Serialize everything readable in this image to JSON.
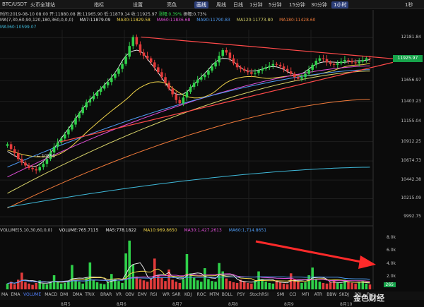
{
  "toolbar": {
    "pair": "BTC/USDT",
    "exchange": "火币全球站",
    "items": [
      "指标",
      "设置",
      "亮色",
      "画线",
      "周线",
      "日线",
      "1分钟",
      "5分钟",
      "15分钟",
      "30分钟",
      "1小时",
      "1秒"
    ],
    "active": "画线",
    "active_period": "1小时"
  },
  "ohlc": {
    "time_label": "时间:2019-08-10 08:00",
    "open_label": "开:11880.08",
    "high_label": "高:11965.90",
    "low_label": "低:11879.14",
    "close_label": "收:11925.97",
    "change_label": "涨幅:0.39%",
    "amplitude_label": "振幅:0.73%"
  },
  "ma_legend": {
    "params": "MA(7,30,60,90,120,180,360,0,0,0)",
    "items": [
      {
        "label": "MA7:11879.09",
        "color": "#e8e8e8"
      },
      {
        "label": "MA30:11829.58",
        "color": "#f0d44a"
      },
      {
        "label": "MA60:11836.68",
        "color": "#e04fd8"
      },
      {
        "label": "MA90:11790.83",
        "color": "#4f9cf5"
      },
      {
        "label": "MA120:11773.80",
        "color": "#d8d36a"
      },
      {
        "label": "MA180:11428.60",
        "color": "#f07a3a"
      }
    ],
    "ma360": {
      "label": "MA360:10599.07",
      "color": "#3fb8d8"
    }
  },
  "volume_legend": {
    "params": "VOLUME(5,10,30,60,0,0)",
    "items": [
      {
        "label": "VOLUME:765.7115",
        "color": "#e8e8e8"
      },
      {
        "label": "MA5:778.1822",
        "color": "#e8e8e8"
      },
      {
        "label": "MA10:969.8650",
        "color": "#f0d44a"
      },
      {
        "label": "MA30:1,427.2613",
        "color": "#e04fd8"
      },
      {
        "label": "MA60:1,714.8651",
        "color": "#4f9cf5"
      }
    ]
  },
  "bottom_tabs": [
    "MA",
    "EMA",
    "VOLUME",
    "MACD",
    "DMI",
    "DMA",
    "TRIX",
    "BRAR",
    "VR",
    "OBV",
    "EMV",
    "RSI",
    "WR",
    "SAR",
    "KDJ",
    "ROC",
    "MTM",
    "BOLL",
    "PSY",
    "StochRSI",
    "SMI",
    "CCI",
    "MFI",
    "ATR",
    "BBW",
    "SKDJ",
    "BBI",
    "Pan"
  ],
  "bottom_active": "VOLUME",
  "low_marker": "← 10555",
  "watermark": "金色财经",
  "colors": {
    "up": "#2fd14a",
    "down": "#e23b3b",
    "trendline": "#ff4a4a",
    "arrow": "#ff2a2a"
  },
  "chart_data": {
    "type": "candlestick",
    "title": "BTC/USDT",
    "price_axis_ticks": [
      "12181.84",
      "11925.97",
      "11656.97",
      "11403.23",
      "11155.04",
      "10912.25",
      "10674.73",
      "10442.38",
      "10215.09",
      "9992.75"
    ],
    "volume_axis_ticks": [
      "8.0k",
      "6.0k",
      "4.0k",
      "2.0k",
      "265"
    ],
    "x_date_labels": [
      "8月5",
      "8月6",
      "8月7",
      "8月8",
      "8月9",
      "8月10"
    ],
    "ylim": [
      9900,
      12280
    ],
    "volume_ylim": [
      0,
      8800
    ],
    "last_price": 11925.97,
    "period_low": 10555,
    "close_series": [
      10880,
      10820,
      10770,
      10700,
      10655,
      10620,
      10590,
      10575,
      10560,
      10600,
      10640,
      10700,
      10780,
      10850,
      10900,
      10950,
      11000,
      11060,
      11120,
      11200,
      11260,
      11330,
      11390,
      11430,
      11470,
      11520,
      11560,
      11600,
      11640,
      11690,
      11740,
      11800,
      11860,
      11950,
      12080,
      12190,
      12100,
      12000,
      11960,
      11930,
      11880,
      11820,
      11760,
      11700,
      11630,
      11560,
      11490,
      11420,
      11380,
      11450,
      11520,
      11580,
      11630,
      11670,
      11700,
      11730,
      11780,
      11830,
      11880,
      11960,
      12030,
      12000,
      11930,
      11870,
      11820,
      11800,
      11780,
      11760,
      11740,
      11750,
      11780,
      11800,
      11820,
      11840,
      11860,
      11850,
      11830,
      11800,
      11770,
      11740,
      11700,
      11680,
      11700,
      11740,
      11790,
      11850,
      11900,
      11930,
      11920,
      11880,
      11860,
      11850,
      11870,
      11890,
      11910,
      11900,
      11880,
      11870,
      11890,
      11910,
      11930,
      11926
    ],
    "volume_series": [
      900,
      1200,
      800,
      1500,
      2600,
      1100,
      900,
      700,
      1000,
      1400,
      900,
      800,
      1100,
      2200,
      1200,
      900,
      1000,
      1300,
      3800,
      1500,
      1200,
      900,
      1800,
      4200,
      1500,
      1100,
      900,
      800,
      1200,
      2400,
      1600,
      1300,
      1000,
      5600,
      7600,
      3900,
      2000,
      1600,
      1400,
      1200,
      1500,
      4800,
      2200,
      1800,
      1300,
      3100,
      1500,
      1200,
      1000,
      1600,
      5500,
      2500,
      1800,
      1400,
      1200,
      3300,
      1600,
      1300,
      1200,
      4100,
      2800,
      1700,
      1300,
      1100,
      1000,
      1500,
      1200,
      1000,
      900,
      1300,
      2800,
      1600,
      1200,
      1000,
      900,
      1400,
      1100,
      900,
      800,
      2500,
      1600,
      1200,
      1000,
      1100,
      2200,
      3400,
      1500,
      1200,
      1000,
      900,
      1100,
      1400,
      1000,
      900,
      1500,
      1200,
      1000,
      900,
      1100,
      1300,
      900,
      766
    ],
    "ma_series": [
      {
        "name": "MA7",
        "color": "#e8e8e8",
        "start": 10850,
        "end": 11879
      },
      {
        "name": "MA30",
        "color": "#f0d44a",
        "start": 10700,
        "end": 11830
      },
      {
        "name": "MA60",
        "color": "#e04fd8",
        "start": 10480,
        "end": 11837
      },
      {
        "name": "MA90",
        "color": "#4f9cf5",
        "start": 10600,
        "end": 11791
      },
      {
        "name": "MA120",
        "color": "#d8d36a",
        "start": 10280,
        "end": 11774
      },
      {
        "name": "MA180",
        "color": "#f07a3a",
        "start": 10100,
        "end": 11429
      },
      {
        "name": "MA360",
        "color": "#3fb8d8",
        "start": 10110,
        "end": 10599
      }
    ],
    "trendlines": [
      {
        "from": [
          0.15,
          10910
        ],
        "to": [
          1.0,
          11880
        ]
      },
      {
        "from": [
          0.37,
          12190
        ],
        "to": [
          1.0,
          11925
        ]
      }
    ],
    "grid": true,
    "legend": "top-left"
  }
}
